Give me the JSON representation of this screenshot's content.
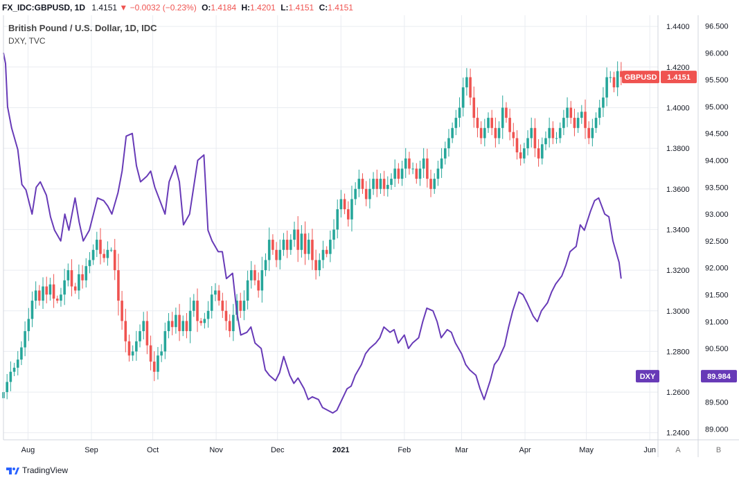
{
  "header": {
    "symbol": "FX_IDC:GBPUSD, 1D",
    "last": "1.4151",
    "change": "−0.0032 (−0.23%)",
    "o_label": "O:",
    "o": "1.4184",
    "h_label": "H:",
    "h": "1.4201",
    "l_label": "L:",
    "l": "1.4151",
    "c_label": "C:",
    "c": "1.4151"
  },
  "legend": {
    "main": "British Pound / U.S. Dollar, 1D, IDC",
    "overlay": "DXY, TVC"
  },
  "footer": {
    "brand": "TradingView"
  },
  "panel_labels": {
    "a": "A",
    "b": "B"
  },
  "colors": {
    "up": "#26a69a",
    "down": "#ef5350",
    "dxy": "#673ab7",
    "grid": "#e9ecf1"
  },
  "chart_data": {
    "type": "line",
    "x_axis": {
      "labels": [
        "Aug",
        "Sep",
        "Oct",
        "Nov",
        "Dec",
        "2021",
        "Feb",
        "Mar",
        "Apr",
        "May",
        "Jun"
      ],
      "range": [
        "2020-07-20",
        "2021-06-05"
      ]
    },
    "y_left": {
      "label": "GBPUSD",
      "ticks": [
        "1.4400",
        "1.4200",
        "1.4000",
        "1.3800",
        "1.3600",
        "1.3400",
        "1.3200",
        "1.3000",
        "1.2800",
        "1.2600",
        "1.2400"
      ],
      "range": [
        1.2365,
        1.4455
      ]
    },
    "y_right": {
      "label": "DXY",
      "ticks": [
        "96.500",
        "96.000",
        "95.500",
        "95.000",
        "94.500",
        "94.000",
        "93.500",
        "93.000",
        "92.500",
        "92.000",
        "91.500",
        "91.000",
        "90.500",
        "90.000",
        "89.500",
        "89.000"
      ],
      "range": [
        88.8,
        96.7
      ]
    },
    "price_tags": {
      "gbpusd_name": "GBPUSD",
      "gbpusd_value": "1.4151",
      "dxy_name": "DXY",
      "dxy_value": "89.984"
    },
    "series": [
      {
        "name": "GBPUSD",
        "style": "candles",
        "closes": [
          1.26,
          1.265,
          1.27,
          1.272,
          1.276,
          1.282,
          1.29,
          1.296,
          1.305,
          1.31,
          1.305,
          1.312,
          1.308,
          1.313,
          1.306,
          1.305,
          1.308,
          1.315,
          1.32,
          1.312,
          1.31,
          1.318,
          1.315,
          1.322,
          1.325,
          1.33,
          1.335,
          1.328,
          1.326,
          1.33,
          1.33,
          1.32,
          1.305,
          1.295,
          1.285,
          1.278,
          1.28,
          1.285,
          1.29,
          1.295,
          1.283,
          1.275,
          1.27,
          1.278,
          1.28,
          1.29,
          1.295,
          1.292,
          1.298,
          1.29,
          1.295,
          1.29,
          1.3,
          1.305,
          1.295,
          1.294,
          1.296,
          1.3,
          1.308,
          1.31,
          1.305,
          1.3,
          1.295,
          1.29,
          1.298,
          1.305,
          1.3,
          1.305,
          1.315,
          1.32,
          1.315,
          1.31,
          1.32,
          1.325,
          1.335,
          1.33,
          1.325,
          1.33,
          1.335,
          1.33,
          1.335,
          1.34,
          1.33,
          1.338,
          1.328,
          1.335,
          1.325,
          1.32,
          1.325,
          1.33,
          1.328,
          1.335,
          1.34,
          1.35,
          1.355,
          1.35,
          1.345,
          1.355,
          1.36,
          1.365,
          1.36,
          1.355,
          1.36,
          1.365,
          1.36,
          1.365,
          1.36,
          1.362,
          1.365,
          1.37,
          1.365,
          1.37,
          1.375,
          1.37,
          1.37,
          1.365,
          1.37,
          1.375,
          1.365,
          1.36,
          1.365,
          1.37,
          1.375,
          1.38,
          1.385,
          1.39,
          1.395,
          1.4,
          1.41,
          1.415,
          1.405,
          1.395,
          1.39,
          1.385,
          1.39,
          1.395,
          1.39,
          1.385,
          1.39,
          1.4,
          1.395,
          1.388,
          1.385,
          1.378,
          1.375,
          1.38,
          1.385,
          1.39,
          1.38,
          1.375,
          1.382,
          1.385,
          1.39,
          1.385,
          1.385,
          1.39,
          1.395,
          1.4,
          1.395,
          1.39,
          1.395,
          1.398,
          1.39,
          1.385,
          1.39,
          1.395,
          1.4,
          1.405,
          1.415,
          1.415,
          1.41,
          1.418,
          1.4151
        ]
      },
      {
        "name": "DXY",
        "style": "line",
        "x_dates": [
          "2020-07-20",
          "2020-07-21",
          "2020-07-22",
          "2020-07-24",
          "2020-07-27",
          "2020-07-29",
          "2020-07-31",
          "2020-08-03",
          "2020-08-05",
          "2020-08-07",
          "2020-08-10",
          "2020-08-12",
          "2020-08-14",
          "2020-08-17",
          "2020-08-19",
          "2020-08-21",
          "2020-08-24",
          "2020-08-26",
          "2020-08-28",
          "2020-08-31",
          "2020-09-02",
          "2020-09-04",
          "2020-09-07",
          "2020-09-09",
          "2020-09-11",
          "2020-09-14",
          "2020-09-16",
          "2020-09-18",
          "2020-09-21",
          "2020-09-23",
          "2020-09-25",
          "2020-09-28",
          "2020-09-30",
          "2020-10-02",
          "2020-10-05",
          "2020-10-07",
          "2020-10-09",
          "2020-10-12",
          "2020-10-14",
          "2020-10-16",
          "2020-10-19",
          "2020-10-21",
          "2020-10-23",
          "2020-10-26",
          "2020-10-28",
          "2020-10-30",
          "2020-11-02",
          "2020-11-04",
          "2020-11-06",
          "2020-11-09",
          "2020-11-11",
          "2020-11-13",
          "2020-11-16",
          "2020-11-18",
          "2020-11-20",
          "2020-11-23",
          "2020-11-25",
          "2020-11-27",
          "2020-11-30",
          "2020-12-02",
          "2020-12-04",
          "2020-12-07",
          "2020-12-09",
          "2020-12-11",
          "2020-12-14",
          "2020-12-16",
          "2020-12-18",
          "2020-12-21",
          "2020-12-23",
          "2020-12-28",
          "2020-12-30",
          "2021-01-04",
          "2021-01-06",
          "2021-01-08",
          "2021-01-11",
          "2021-01-13",
          "2021-01-15",
          "2021-01-18",
          "2021-01-20",
          "2021-01-22",
          "2021-01-25",
          "2021-01-27",
          "2021-01-29",
          "2021-02-01",
          "2021-02-03",
          "2021-02-05",
          "2021-02-08",
          "2021-02-10",
          "2021-02-12",
          "2021-02-15",
          "2021-02-17",
          "2021-02-19",
          "2021-02-22",
          "2021-02-24",
          "2021-02-26",
          "2021-03-01",
          "2021-03-03",
          "2021-03-05",
          "2021-03-08",
          "2021-03-10",
          "2021-03-12",
          "2021-03-15",
          "2021-03-17",
          "2021-03-19",
          "2021-03-22",
          "2021-03-24",
          "2021-03-26",
          "2021-03-29",
          "2021-03-31",
          "2021-04-02",
          "2021-04-05",
          "2021-04-07",
          "2021-04-09",
          "2021-04-12",
          "2021-04-14",
          "2021-04-16",
          "2021-04-19",
          "2021-04-21",
          "2021-04-23",
          "2021-04-26",
          "2021-04-28",
          "2021-04-30",
          "2021-05-03",
          "2021-05-05",
          "2021-05-07",
          "2021-05-10",
          "2021-05-12",
          "2021-05-14",
          "2021-05-17",
          "2021-05-18"
        ],
        "values": [
          96.0,
          95.8,
          95.0,
          94.6,
          94.2,
          93.55,
          93.45,
          93.0,
          93.5,
          93.6,
          93.35,
          92.95,
          92.7,
          92.5,
          93.0,
          92.7,
          93.3,
          92.85,
          92.5,
          92.7,
          93.0,
          93.3,
          93.25,
          93.15,
          93.0,
          93.4,
          93.8,
          94.45,
          94.5,
          93.9,
          93.6,
          93.7,
          93.8,
          93.5,
          93.2,
          93.0,
          93.6,
          93.9,
          93.6,
          92.8,
          93.0,
          93.5,
          94.0,
          94.1,
          92.7,
          92.5,
          92.3,
          92.3,
          91.8,
          91.9,
          91.2,
          90.75,
          90.8,
          90.9,
          90.6,
          90.5,
          90.1,
          90.0,
          89.9,
          90.05,
          90.35,
          90.0,
          89.85,
          89.95,
          89.75,
          89.55,
          89.6,
          89.55,
          89.4,
          89.3,
          89.35,
          89.75,
          89.8,
          90.0,
          90.2,
          90.4,
          90.5,
          90.6,
          90.7,
          90.9,
          90.8,
          90.85,
          90.6,
          90.75,
          90.5,
          90.6,
          90.7,
          91.0,
          91.25,
          91.2,
          91.0,
          90.7,
          90.85,
          90.8,
          90.6,
          90.4,
          90.2,
          90.1,
          90.0,
          89.75,
          89.55,
          89.9,
          90.2,
          90.3,
          90.55,
          90.9,
          91.2,
          91.55,
          91.5,
          91.35,
          91.1,
          91.0,
          91.2,
          91.35,
          91.55,
          91.7,
          91.85,
          92.05,
          92.3,
          92.4,
          92.8,
          92.7,
          93.05,
          93.25,
          93.3,
          93.0,
          92.95,
          92.5,
          92.1,
          91.8
        ]
      }
    ]
  }
}
